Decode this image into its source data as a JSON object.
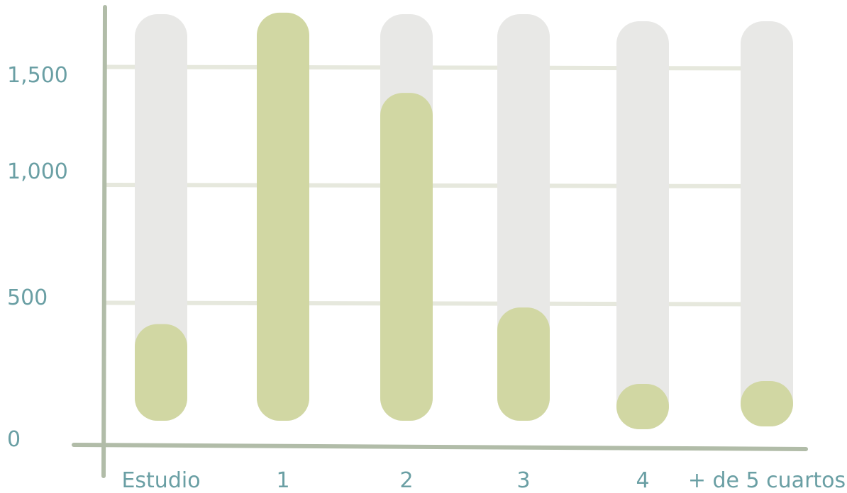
{
  "chart_data": {
    "type": "bar",
    "categories": [
      "Estudio",
      "1",
      "2",
      "3",
      "4",
      "+ de 5 cuartos"
    ],
    "values": [
      380,
      1700,
      1360,
      450,
      80,
      60
    ],
    "ylim": [
      0,
      1700
    ],
    "y_ticks": [
      {
        "value": 0,
        "label": "0"
      },
      {
        "value": 500,
        "label": "500"
      },
      {
        "value": 1000,
        "label": "1,000"
      },
      {
        "value": 1500,
        "label": "1,500"
      }
    ],
    "grid": true,
    "colors": {
      "bar": "#d1d7a3",
      "track": "#e8e8e6",
      "grid": "#e6e8dd",
      "axis": "#b1bca8",
      "text": "#6a9fa4"
    }
  }
}
